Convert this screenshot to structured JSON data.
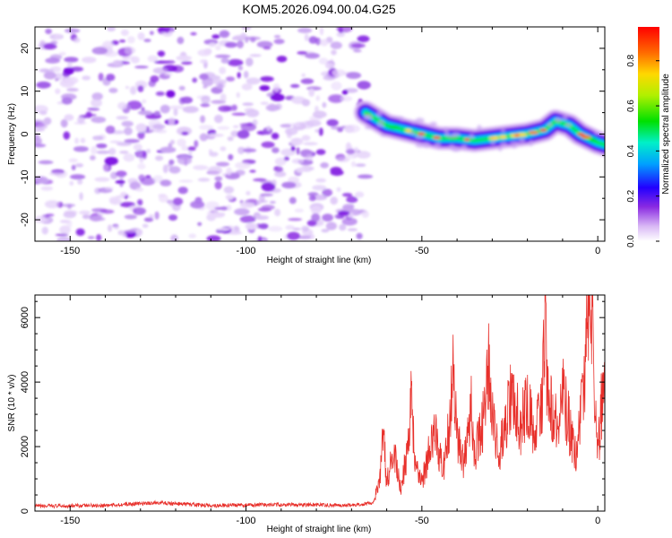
{
  "title": "KOM5.2026.094.00.04.G25",
  "chart_data": [
    {
      "type": "heatmap",
      "name": "spectrogram",
      "xlabel": "Height of straight line (km)",
      "ylabel": "Frequency (Hz)",
      "xlim": [
        -160,
        2
      ],
      "ylim": [
        -25,
        25
      ],
      "xticks": [
        -150,
        -100,
        -50,
        0
      ],
      "yticks": [
        -20,
        -10,
        0,
        10,
        20
      ],
      "noise_region_x": [
        -160,
        -66
      ],
      "signal_track": [
        {
          "x": -66,
          "y": 5
        },
        {
          "x": -60,
          "y": 2
        },
        {
          "x": -55,
          "y": 1
        },
        {
          "x": -50,
          "y": 0
        },
        {
          "x": -45,
          "y": -1
        },
        {
          "x": -40,
          "y": -1
        },
        {
          "x": -35,
          "y": -1.5
        },
        {
          "x": -30,
          "y": -1
        },
        {
          "x": -25,
          "y": -0.5
        },
        {
          "x": -20,
          "y": 0
        },
        {
          "x": -15,
          "y": 1
        },
        {
          "x": -12,
          "y": 3
        },
        {
          "x": -8,
          "y": 2
        },
        {
          "x": -5,
          "y": 0
        },
        {
          "x": 0,
          "y": -2
        },
        {
          "x": 2,
          "y": -2.5
        }
      ],
      "colorbar": {
        "label": "Normalized spectral amplitude",
        "range": [
          0,
          0.95
        ],
        "ticks": [
          0.0,
          0.2,
          0.4,
          0.6,
          0.8
        ]
      }
    },
    {
      "type": "line",
      "name": "snr",
      "xlabel": "Height of straight line (km)",
      "ylabel": "SNR (10 * v/v)",
      "xlim": [
        -160,
        2
      ],
      "ylim": [
        0,
        6700
      ],
      "xticks": [
        -150,
        -100,
        -50,
        0
      ],
      "yticks": [
        0,
        2000,
        4000,
        6000
      ],
      "color": "#e8302b",
      "series": [
        {
          "x": -160,
          "y": 150
        },
        {
          "x": -140,
          "y": 180
        },
        {
          "x": -125,
          "y": 260
        },
        {
          "x": -110,
          "y": 170
        },
        {
          "x": -90,
          "y": 200
        },
        {
          "x": -70,
          "y": 180
        },
        {
          "x": -64,
          "y": 250
        },
        {
          "x": -62,
          "y": 900
        },
        {
          "x": -61,
          "y": 2400
        },
        {
          "x": -60,
          "y": 900
        },
        {
          "x": -58,
          "y": 1800
        },
        {
          "x": -56,
          "y": 700
        },
        {
          "x": -54,
          "y": 2000
        },
        {
          "x": -53,
          "y": 3800
        },
        {
          "x": -52,
          "y": 1500
        },
        {
          "x": -50,
          "y": 900
        },
        {
          "x": -48,
          "y": 1800
        },
        {
          "x": -46,
          "y": 2400
        },
        {
          "x": -44,
          "y": 1200
        },
        {
          "x": -42,
          "y": 2800
        },
        {
          "x": -41,
          "y": 4800
        },
        {
          "x": -40,
          "y": 2200
        },
        {
          "x": -38,
          "y": 1500
        },
        {
          "x": -36,
          "y": 3500
        },
        {
          "x": -35,
          "y": 1800
        },
        {
          "x": -33,
          "y": 2500
        },
        {
          "x": -31,
          "y": 4400
        },
        {
          "x": -30,
          "y": 2800
        },
        {
          "x": -28,
          "y": 1700
        },
        {
          "x": -26,
          "y": 2900
        },
        {
          "x": -24,
          "y": 3800
        },
        {
          "x": -22,
          "y": 2500
        },
        {
          "x": -20,
          "y": 3500
        },
        {
          "x": -18,
          "y": 2300
        },
        {
          "x": -16,
          "y": 3200
        },
        {
          "x": -15,
          "y": 5500
        },
        {
          "x": -14,
          "y": 3600
        },
        {
          "x": -12,
          "y": 2700
        },
        {
          "x": -10,
          "y": 3700
        },
        {
          "x": -8,
          "y": 2600
        },
        {
          "x": -6,
          "y": 1700
        },
        {
          "x": -4,
          "y": 3900
        },
        {
          "x": -3,
          "y": 5800
        },
        {
          "x": -2,
          "y": 6700
        },
        {
          "x": -1,
          "y": 4600
        },
        {
          "x": 0,
          "y": 1600
        },
        {
          "x": 1,
          "y": 3200
        },
        {
          "x": 2,
          "y": 4000
        }
      ]
    }
  ]
}
